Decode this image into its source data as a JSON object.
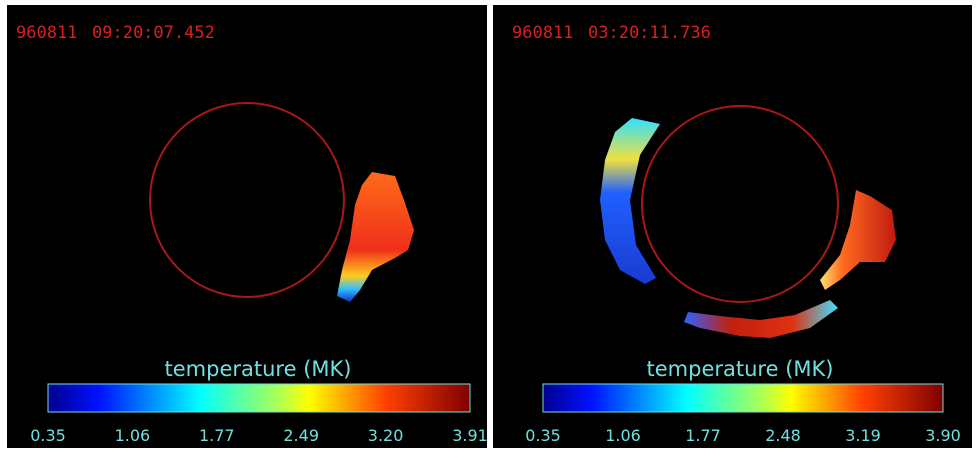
{
  "panels": [
    {
      "date": "960811",
      "time": "09:20:07.452",
      "colorbar": {
        "label": "temperature (MK)",
        "ticks": [
          "0.35",
          "1.06",
          "1.77",
          "2.49",
          "3.20",
          "3.91"
        ]
      }
    },
    {
      "date": "960811",
      "time": "03:20:11.736",
      "colorbar": {
        "label": "temperature (MK)",
        "ticks": [
          "0.35",
          "1.06",
          "1.77",
          "2.48",
          "3.19",
          "3.90"
        ]
      }
    }
  ]
}
